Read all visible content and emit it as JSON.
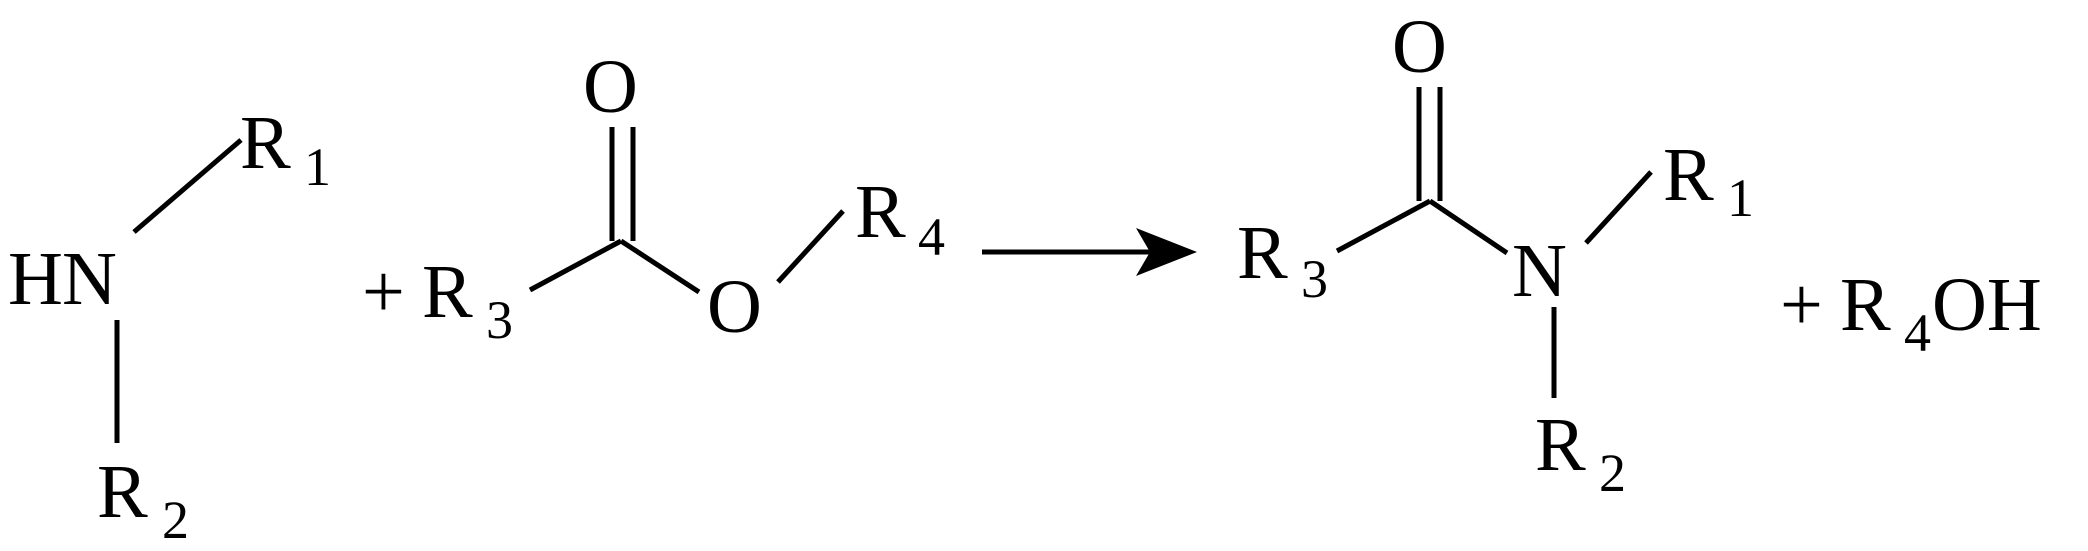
{
  "reaction": {
    "amine": {
      "atoms": {
        "h": "H",
        "n": "N"
      },
      "substituent_1": {
        "letter": "R",
        "index": "1"
      },
      "substituent_2": {
        "letter": "R",
        "index": "2"
      }
    },
    "ester": {
      "plus": "+",
      "r3": {
        "letter": "R",
        "index": "3"
      },
      "carbonyl_o": "O",
      "ether_o": "O",
      "r4": {
        "letter": "R",
        "index": "4"
      }
    },
    "amide": {
      "carbonyl_o": "O",
      "r3": {
        "letter": "R",
        "index": "3"
      },
      "n": "N",
      "r1": {
        "letter": "R",
        "index": "1"
      },
      "r2": {
        "letter": "R",
        "index": "2"
      }
    },
    "byproduct": {
      "plus": "+",
      "r": "R",
      "index": "4",
      "oh": "OH"
    }
  }
}
